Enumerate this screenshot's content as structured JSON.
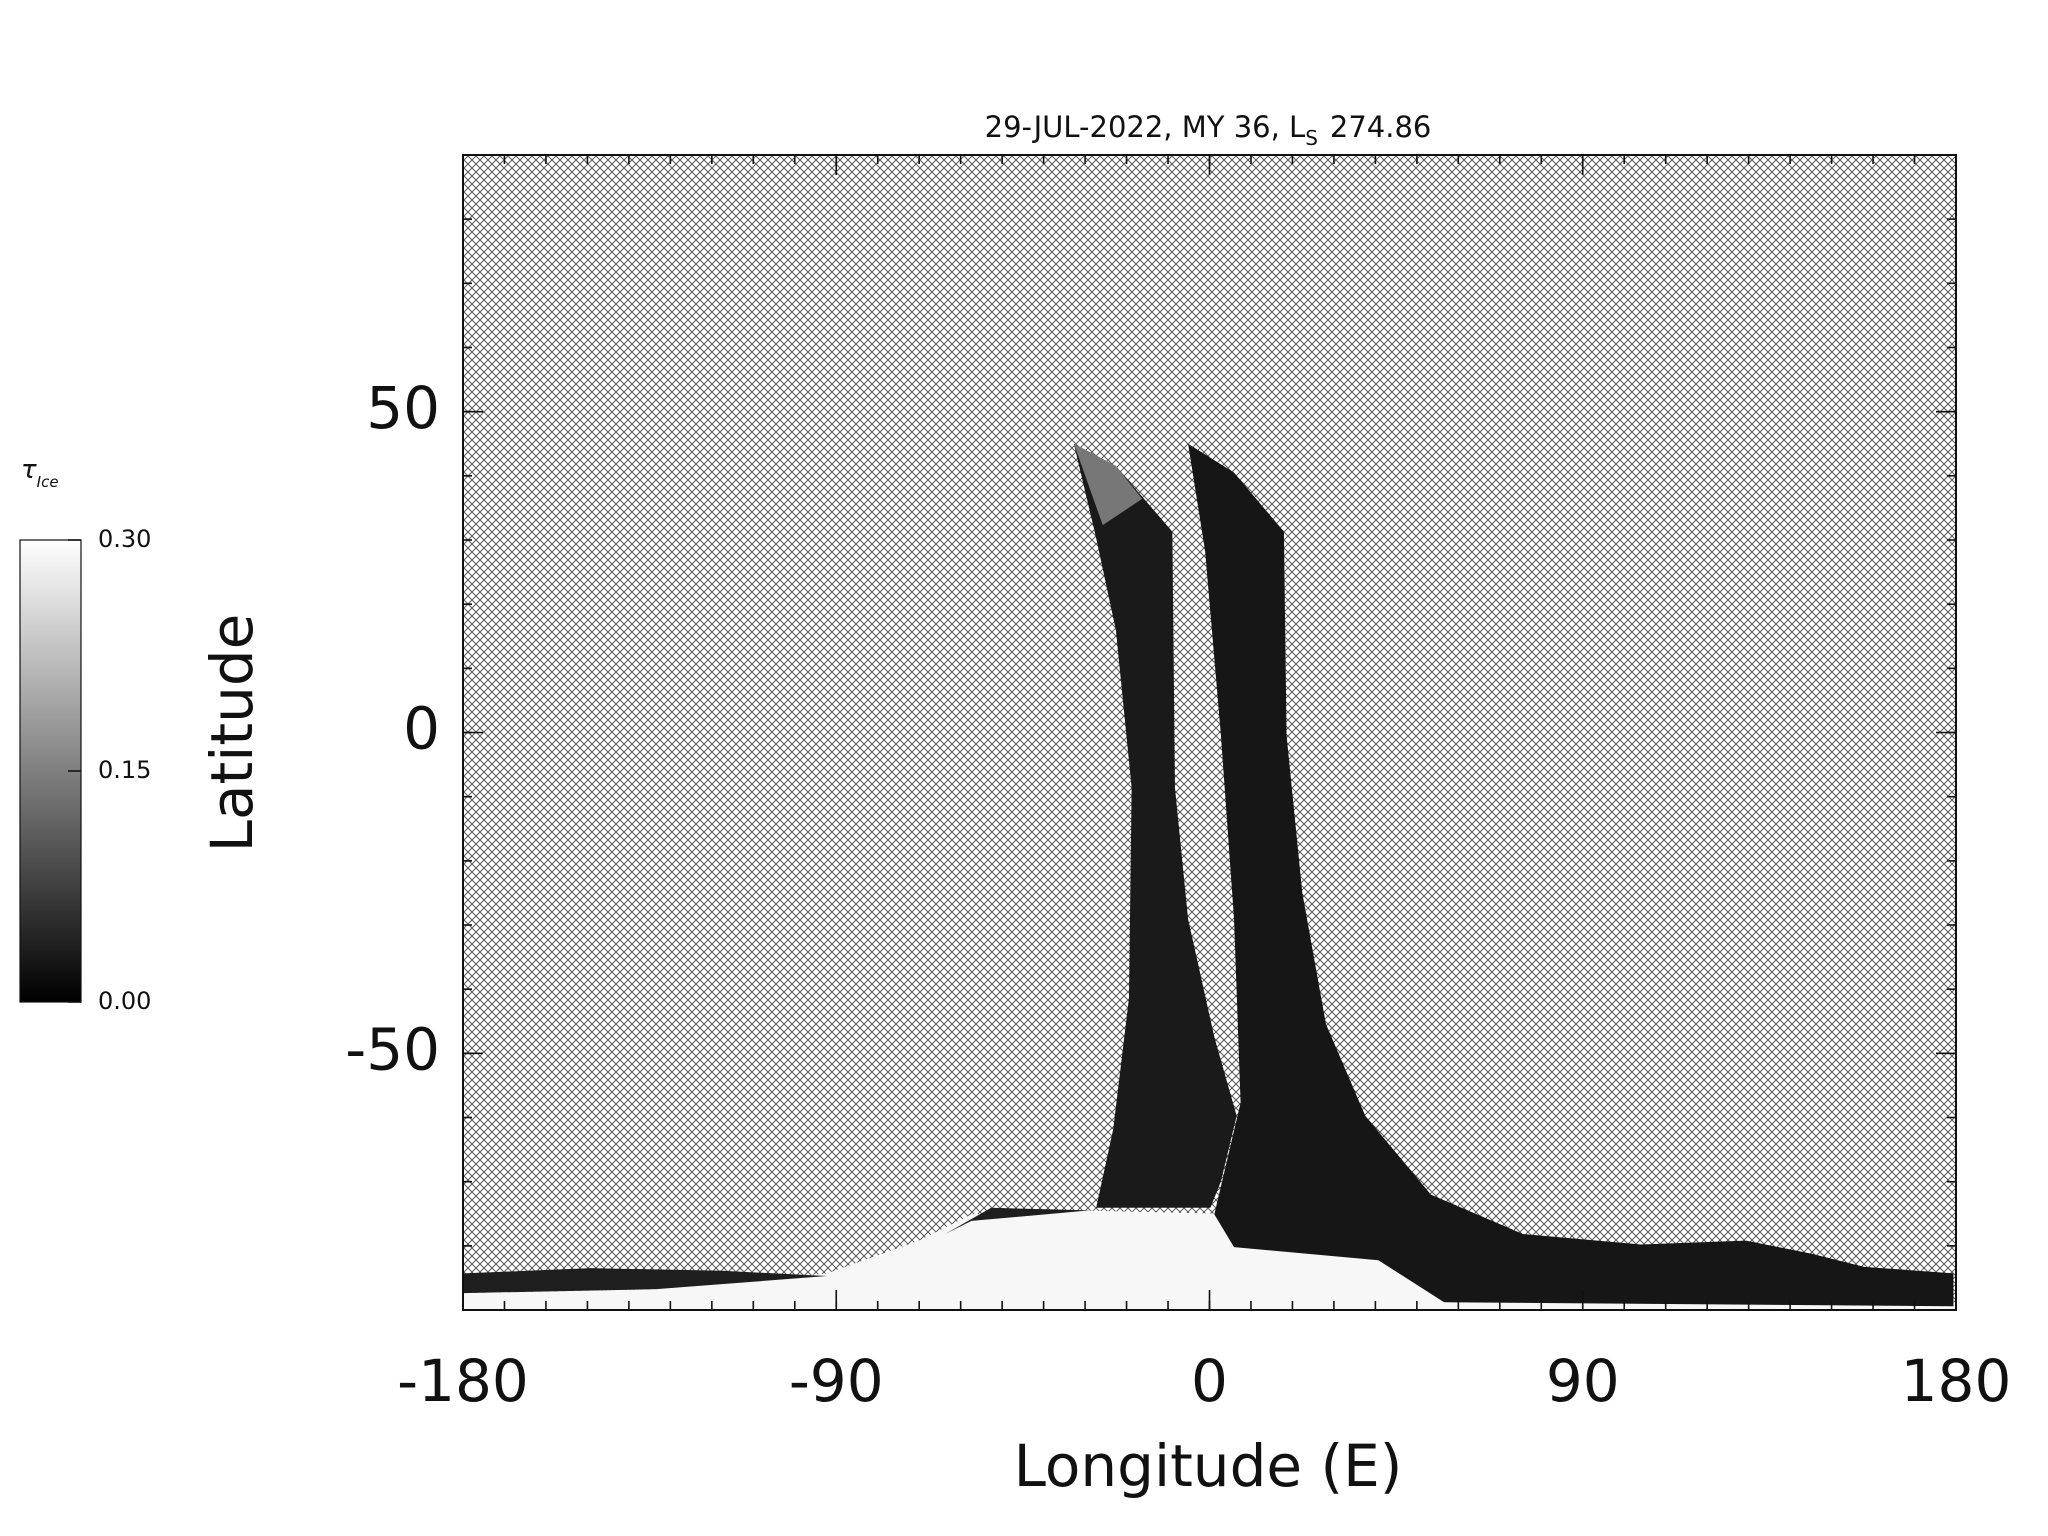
{
  "chart_data": {
    "type": "map",
    "title": "29-JUL-2022, MY 36,  L",
    "title_sub": "S",
    "title_value": "274.86",
    "x_label": "Longitude (E)",
    "y_label": "Latitude",
    "xlim": [
      -180,
      180
    ],
    "xticks": [
      -180,
      -90,
      0,
      90,
      180
    ],
    "ylim": [
      -90,
      90
    ],
    "yticks": [
      -50,
      0,
      50
    ],
    "minor_tick_step": 10,
    "colorbar": {
      "label": "τ",
      "label_sub": "Ice",
      "lim": [
        0,
        0.3
      ],
      "ticks": [
        {
          "value": 0,
          "label": "0.00"
        },
        {
          "value": 0.15,
          "label": "0.15"
        },
        {
          "value": 0.3,
          "label": "0.30"
        }
      ]
    }
  }
}
